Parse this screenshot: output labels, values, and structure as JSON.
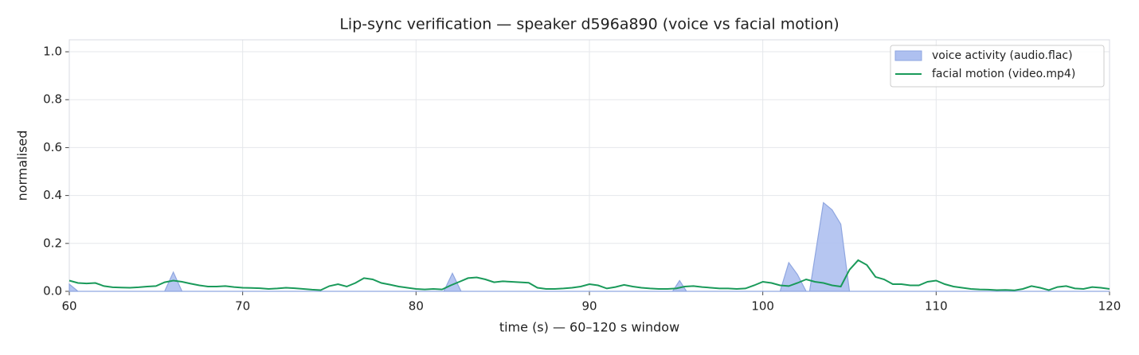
{
  "chart_data": {
    "type": "line",
    "title": "Lip-sync verification — speaker d596a890 (voice vs facial motion)",
    "x_label": "time (s)  — 60–120 s window",
    "y_label": "normalised",
    "xlim": [
      60,
      120
    ],
    "ylim": [
      0,
      1.05
    ],
    "xticks": [
      60,
      70,
      80,
      90,
      100,
      110,
      120
    ],
    "yticks": [
      {
        "value": 0,
        "label": "0.0"
      },
      0.2,
      0.4,
      0.6,
      0.8,
      {
        "value": 1,
        "label": "1.0"
      }
    ],
    "grid": true,
    "legend": "upper right",
    "series": [
      {
        "name": "voice activity (audio.flac)",
        "kind": "area",
        "color": "#aec0f0",
        "edge_color": "#8fa6e0",
        "x": [
          60,
          60.5,
          65.5,
          66,
          66.5,
          81.6,
          82.1,
          82.6,
          94.8,
          95.2,
          95.6,
          101,
          101.5,
          102,
          102.5,
          102.7,
          103.5,
          104,
          104.5,
          105,
          120
        ],
        "values": [
          0.03,
          0,
          0,
          0.08,
          0,
          0,
          0.075,
          0,
          0,
          0.045,
          0,
          0,
          0.12,
          0.07,
          0,
          0,
          0.37,
          0.34,
          0.28,
          0,
          0
        ]
      },
      {
        "name": "facial motion (video.mp4)",
        "kind": "line",
        "color": "#1a9a5a",
        "x": [
          60,
          60.5,
          61,
          61.5,
          62,
          62.5,
          63,
          63.5,
          64,
          64.5,
          65,
          65.5,
          66,
          66.5,
          67,
          67.5,
          68,
          68.5,
          69,
          69.5,
          70,
          70.5,
          71,
          71.5,
          72,
          72.5,
          73,
          73.5,
          74,
          74.5,
          75,
          75.5,
          76,
          76.5,
          77,
          77.5,
          78,
          78.5,
          79,
          79.5,
          80,
          80.5,
          81,
          81.5,
          82,
          82.5,
          83,
          83.5,
          84,
          84.5,
          85,
          85.5,
          86,
          86.5,
          87,
          87.5,
          88,
          88.5,
          89,
          89.5,
          90,
          90.5,
          91,
          91.5,
          92,
          92.5,
          93,
          93.5,
          94,
          94.5,
          95,
          95.5,
          96,
          96.5,
          97,
          97.5,
          98,
          98.5,
          99,
          99.5,
          100,
          100.5,
          101,
          101.5,
          102,
          102.5,
          103,
          103.5,
          104,
          104.5,
          105,
          105.5,
          106,
          106.5,
          107,
          107.5,
          108,
          108.5,
          109,
          109.5,
          110,
          110.5,
          111,
          111.5,
          112,
          112.5,
          113,
          113.5,
          114,
          114.5,
          115,
          115.5,
          116,
          116.5,
          117,
          117.5,
          118,
          118.5,
          119,
          119.5,
          120
        ],
        "values": [
          0.045,
          0.035,
          0.033,
          0.035,
          0.022,
          0.017,
          0.016,
          0.015,
          0.017,
          0.02,
          0.022,
          0.038,
          0.045,
          0.04,
          0.032,
          0.025,
          0.02,
          0.02,
          0.022,
          0.018,
          0.015,
          0.014,
          0.013,
          0.01,
          0.012,
          0.015,
          0.013,
          0.01,
          0.007,
          0.005,
          0.022,
          0.03,
          0.02,
          0.035,
          0.055,
          0.05,
          0.035,
          0.028,
          0.02,
          0.015,
          0.01,
          0.008,
          0.01,
          0.008,
          0.025,
          0.04,
          0.055,
          0.058,
          0.05,
          0.038,
          0.042,
          0.04,
          0.038,
          0.036,
          0.015,
          0.01,
          0.01,
          0.012,
          0.015,
          0.02,
          0.03,
          0.025,
          0.012,
          0.018,
          0.027,
          0.02,
          0.015,
          0.012,
          0.01,
          0.01,
          0.012,
          0.02,
          0.022,
          0.018,
          0.015,
          0.012,
          0.012,
          0.01,
          0.012,
          0.025,
          0.04,
          0.035,
          0.025,
          0.022,
          0.035,
          0.05,
          0.04,
          0.035,
          0.025,
          0.02,
          0.09,
          0.13,
          0.11,
          0.06,
          0.05,
          0.03,
          0.03,
          0.025,
          0.025,
          0.04,
          0.045,
          0.03,
          0.02,
          0.015,
          0.01,
          0.008,
          0.007,
          0.005,
          0.006,
          0.004,
          0.01,
          0.022,
          0.015,
          0.005,
          0.018,
          0.022,
          0.012,
          0.01,
          0.018,
          0.015,
          0.01
        ]
      }
    ]
  }
}
